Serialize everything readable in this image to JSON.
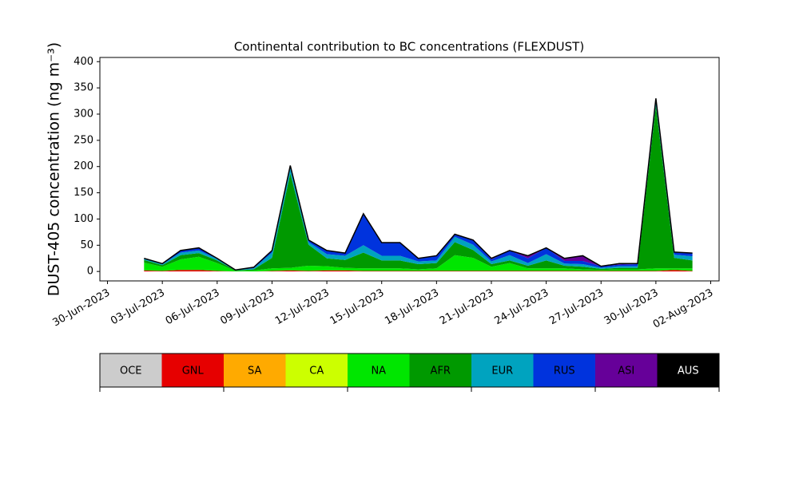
{
  "chart_data": {
    "type": "stacked_area",
    "title": "Continental contribution to BC concentrations (FLEXDUST)",
    "y_label": "DUST-405 concentration (ng m⁻³)",
    "x": [
      "2023-07-02",
      "2023-07-03",
      "2023-07-04",
      "2023-07-05",
      "2023-07-06",
      "2023-07-07",
      "2023-07-08",
      "2023-07-09",
      "2023-07-10",
      "2023-07-11",
      "2023-07-12",
      "2023-07-13",
      "2023-07-14",
      "2023-07-15",
      "2023-07-16",
      "2023-07-17",
      "2023-07-18",
      "2023-07-19",
      "2023-07-20",
      "2023-07-21",
      "2023-07-22",
      "2023-07-23",
      "2023-07-24",
      "2023-07-25",
      "2023-07-26",
      "2023-07-27",
      "2023-07-28",
      "2023-07-29",
      "2023-07-30",
      "2023-07-31",
      "2023-08-01"
    ],
    "xlim": [
      "2023-06-29T14:00",
      "2023-08-02T11:00"
    ],
    "xticks": [
      {
        "value": "2023-06-30",
        "label": "30-Jun-2023"
      },
      {
        "value": "2023-07-03",
        "label": "03-Jul-2023"
      },
      {
        "value": "2023-07-06",
        "label": "06-Jul-2023"
      },
      {
        "value": "2023-07-09",
        "label": "09-Jul-2023"
      },
      {
        "value": "2023-07-12",
        "label": "12-Jul-2023"
      },
      {
        "value": "2023-07-15",
        "label": "15-Jul-2023"
      },
      {
        "value": "2023-07-18",
        "label": "18-Jul-2023"
      },
      {
        "value": "2023-07-21",
        "label": "21-Jul-2023"
      },
      {
        "value": "2023-07-24",
        "label": "24-Jul-2023"
      },
      {
        "value": "2023-07-27",
        "label": "27-Jul-2023"
      },
      {
        "value": "2023-07-30",
        "label": "30-Jul-2023"
      },
      {
        "value": "2023-08-02",
        "label": "02-Aug-2023"
      }
    ],
    "ylim": [
      -18,
      408
    ],
    "yticks": [
      0,
      50,
      100,
      150,
      200,
      250,
      300,
      350,
      400
    ],
    "series": [
      {
        "name": "OCE",
        "color": "#cccccc",
        "values": [
          0,
          0,
          0,
          0,
          0,
          0,
          0,
          0,
          0,
          0,
          0,
          0,
          0,
          0,
          0,
          0,
          0,
          0,
          0,
          0,
          0,
          0,
          0,
          0,
          0,
          0,
          0,
          0,
          0,
          0,
          0
        ]
      },
      {
        "name": "GNL",
        "color": "#e60000",
        "values": [
          2,
          1,
          3,
          3,
          1,
          0,
          0,
          1,
          2,
          1,
          2,
          2,
          1,
          1,
          1,
          1,
          1,
          1,
          1,
          1,
          1,
          1,
          1,
          1,
          1,
          1,
          1,
          1,
          1,
          3,
          1
        ]
      },
      {
        "name": "SA",
        "color": "#ffaa00",
        "values": [
          0,
          0,
          0,
          0,
          0,
          0,
          0,
          0,
          0,
          0,
          0,
          0,
          0,
          0,
          0,
          0,
          0,
          0,
          0,
          0,
          0,
          0,
          0,
          0,
          0,
          0,
          0,
          0,
          0,
          0,
          0
        ]
      },
      {
        "name": "CA",
        "color": "#ccff00",
        "values": [
          0,
          0,
          0,
          0,
          0,
          0,
          0,
          0,
          0,
          0,
          0,
          0,
          0,
          0,
          0,
          0,
          0,
          0,
          0,
          0,
          0,
          0,
          0,
          0,
          0,
          0,
          0,
          0,
          0,
          0,
          0
        ]
      },
      {
        "name": "NA",
        "color": "#00e600",
        "values": [
          15,
          8,
          20,
          25,
          15,
          1,
          2,
          5,
          5,
          10,
          8,
          5,
          5,
          5,
          5,
          3,
          5,
          30,
          25,
          8,
          15,
          5,
          5,
          5,
          3,
          2,
          3,
          3,
          5,
          3,
          5
        ]
      },
      {
        "name": "AFR",
        "color": "#009900",
        "values": [
          5,
          3,
          8,
          7,
          5,
          1,
          2,
          20,
          180,
          40,
          15,
          15,
          30,
          15,
          15,
          10,
          10,
          25,
          15,
          5,
          5,
          5,
          15,
          5,
          5,
          2,
          3,
          3,
          310,
          20,
          15
        ]
      },
      {
        "name": "EUR",
        "color": "#00a3bf",
        "values": [
          3,
          2,
          5,
          5,
          3,
          1,
          2,
          10,
          10,
          5,
          8,
          8,
          14,
          9,
          9,
          5,
          5,
          10,
          10,
          5,
          10,
          5,
          12,
          4,
          5,
          2,
          3,
          3,
          8,
          6,
          8
        ]
      },
      {
        "name": "RUS",
        "color": "#0033dd",
        "values": [
          0,
          1,
          4,
          5,
          1,
          0,
          2,
          4,
          5,
          4,
          7,
          5,
          60,
          25,
          25,
          6,
          9,
          5,
          9,
          4,
          9,
          9,
          12,
          5,
          6,
          3,
          3,
          4,
          6,
          5,
          6
        ]
      },
      {
        "name": "ASI",
        "color": "#660099",
        "values": [
          0,
          0,
          0,
          0,
          0,
          0,
          0,
          0,
          0,
          0,
          0,
          0,
          0,
          0,
          0,
          0,
          0,
          0,
          0,
          2,
          0,
          5,
          0,
          5,
          10,
          0,
          2,
          1,
          0,
          0,
          0
        ]
      },
      {
        "name": "AUS",
        "color": "#000000",
        "values": [
          0,
          0,
          0,
          0,
          0,
          0,
          0,
          0,
          0,
          0,
          0,
          0,
          0,
          0,
          0,
          0,
          0,
          0,
          0,
          0,
          0,
          0,
          0,
          0,
          0,
          0,
          0,
          0,
          0,
          0,
          0
        ]
      }
    ]
  }
}
